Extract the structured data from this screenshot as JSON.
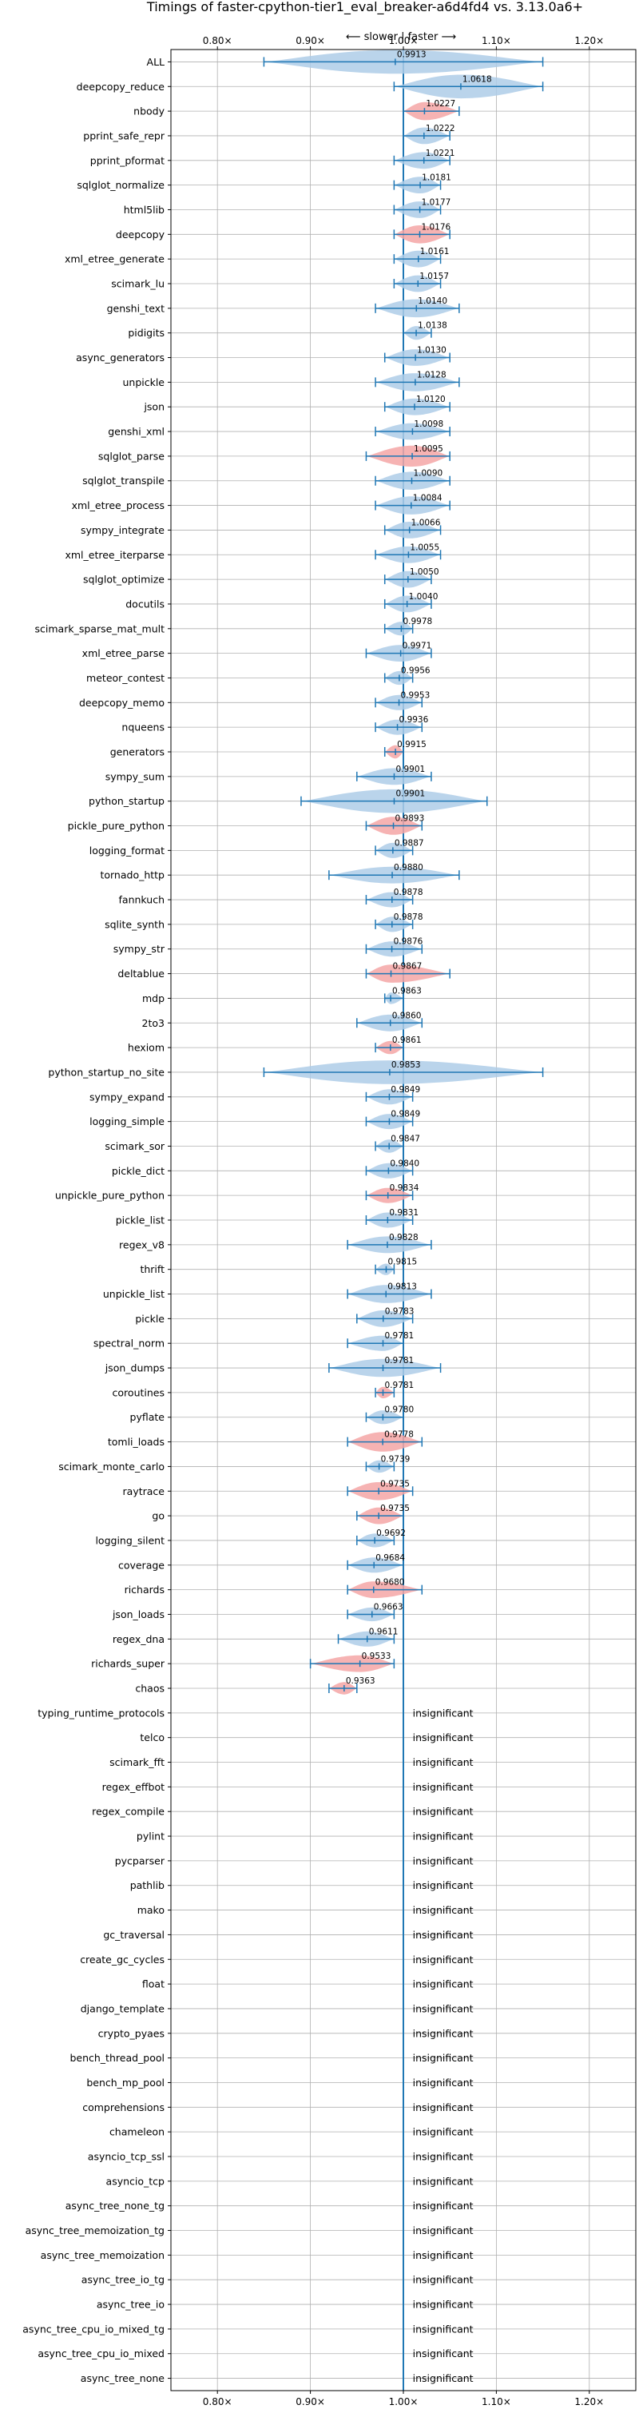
{
  "chart_data": {
    "type": "violin",
    "title": "Timings of faster-cpython-tier1_eval_breaker-a6d4fd4 vs. 3.13.0a6+",
    "direction_label": "⟵ slower | faster ⟶",
    "xlim": [
      0.75,
      1.25
    ],
    "x_ticks": [
      0.8,
      0.9,
      1.0,
      1.1,
      1.2
    ],
    "x_tick_labels": [
      "0.80×",
      "0.90×",
      "1.00×",
      "1.10×",
      "1.20×"
    ],
    "reference_line": 1.0,
    "grid": true,
    "colors": {
      "normal": "#aecde8",
      "highlight": "#f4a6a6",
      "line": "#1f77b4",
      "grid": "#b0b0b0"
    },
    "insignificant_label": "insignificant",
    "benchmarks": [
      {
        "name": "ALL",
        "value": 0.9913,
        "label": "0.9913",
        "lo": 0.85,
        "hi": 1.15,
        "width": 0.07,
        "highlight": false
      },
      {
        "name": "deepcopy_reduce",
        "value": 1.0618,
        "label": "1.0618",
        "lo": 0.99,
        "hi": 1.15,
        "width": 0.07,
        "highlight": false
      },
      {
        "name": "nbody",
        "value": 1.0227,
        "label": "1.0227",
        "lo": 1.0,
        "hi": 1.06,
        "width": 0.035,
        "highlight": true
      },
      {
        "name": "pprint_safe_repr",
        "value": 1.0222,
        "label": "1.0222",
        "lo": 1.0,
        "hi": 1.05,
        "width": 0.03,
        "highlight": false
      },
      {
        "name": "pprint_pformat",
        "value": 1.0221,
        "label": "1.0221",
        "lo": 0.99,
        "hi": 1.05,
        "width": 0.03,
        "highlight": false
      },
      {
        "name": "sqlglot_normalize",
        "value": 1.0181,
        "label": "1.0181",
        "lo": 0.99,
        "hi": 1.04,
        "width": 0.03,
        "highlight": false
      },
      {
        "name": "html5lib",
        "value": 1.0177,
        "label": "1.0177",
        "lo": 0.99,
        "hi": 1.04,
        "width": 0.03,
        "highlight": false
      },
      {
        "name": "deepcopy",
        "value": 1.0176,
        "label": "1.0176",
        "lo": 0.99,
        "hi": 1.05,
        "width": 0.035,
        "highlight": true
      },
      {
        "name": "xml_etree_generate",
        "value": 1.0161,
        "label": "1.0161",
        "lo": 0.99,
        "hi": 1.04,
        "width": 0.03,
        "highlight": false
      },
      {
        "name": "scimark_lu",
        "value": 1.0157,
        "label": "1.0157",
        "lo": 0.99,
        "hi": 1.04,
        "width": 0.03,
        "highlight": false
      },
      {
        "name": "genshi_text",
        "value": 1.014,
        "label": "1.0140",
        "lo": 0.97,
        "hi": 1.06,
        "width": 0.035,
        "highlight": false
      },
      {
        "name": "pidigits",
        "value": 1.0138,
        "label": "1.0138",
        "lo": 1.0,
        "hi": 1.03,
        "width": 0.02,
        "highlight": false
      },
      {
        "name": "async_generators",
        "value": 1.013,
        "label": "1.0130",
        "lo": 0.98,
        "hi": 1.05,
        "width": 0.03,
        "highlight": false
      },
      {
        "name": "unpickle",
        "value": 1.0128,
        "label": "1.0128",
        "lo": 0.97,
        "hi": 1.06,
        "width": 0.035,
        "highlight": false
      },
      {
        "name": "json",
        "value": 1.012,
        "label": "1.0120",
        "lo": 0.98,
        "hi": 1.05,
        "width": 0.03,
        "highlight": false
      },
      {
        "name": "genshi_xml",
        "value": 1.0098,
        "label": "1.0098",
        "lo": 0.97,
        "hi": 1.05,
        "width": 0.03,
        "highlight": false
      },
      {
        "name": "sqlglot_parse",
        "value": 1.0095,
        "label": "1.0095",
        "lo": 0.96,
        "hi": 1.05,
        "width": 0.045,
        "highlight": true
      },
      {
        "name": "sqlglot_transpile",
        "value": 1.009,
        "label": "1.0090",
        "lo": 0.97,
        "hi": 1.05,
        "width": 0.035,
        "highlight": false
      },
      {
        "name": "xml_etree_process",
        "value": 1.0084,
        "label": "1.0084",
        "lo": 0.97,
        "hi": 1.05,
        "width": 0.035,
        "highlight": false
      },
      {
        "name": "sympy_integrate",
        "value": 1.0066,
        "label": "1.0066",
        "lo": 0.98,
        "hi": 1.04,
        "width": 0.03,
        "highlight": false
      },
      {
        "name": "xml_etree_iterparse",
        "value": 1.0055,
        "label": "1.0055",
        "lo": 0.97,
        "hi": 1.04,
        "width": 0.03,
        "highlight": false
      },
      {
        "name": "sqlglot_optimize",
        "value": 1.005,
        "label": "1.0050",
        "lo": 0.98,
        "hi": 1.03,
        "width": 0.03,
        "highlight": false
      },
      {
        "name": "docutils",
        "value": 1.004,
        "label": "1.0040",
        "lo": 0.98,
        "hi": 1.03,
        "width": 0.03,
        "highlight": false
      },
      {
        "name": "scimark_sparse_mat_mult",
        "value": 0.9978,
        "label": "0.9978",
        "lo": 0.98,
        "hi": 1.01,
        "width": 0.02,
        "highlight": false
      },
      {
        "name": "xml_etree_parse",
        "value": 0.9971,
        "label": "0.9971",
        "lo": 0.96,
        "hi": 1.03,
        "width": 0.03,
        "highlight": false
      },
      {
        "name": "meteor_contest",
        "value": 0.9956,
        "label": "0.9956",
        "lo": 0.98,
        "hi": 1.01,
        "width": 0.02,
        "highlight": false
      },
      {
        "name": "deepcopy_memo",
        "value": 0.9953,
        "label": "0.9953",
        "lo": 0.97,
        "hi": 1.02,
        "width": 0.025,
        "highlight": false
      },
      {
        "name": "nqueens",
        "value": 0.9936,
        "label": "0.9936",
        "lo": 0.97,
        "hi": 1.02,
        "width": 0.025,
        "highlight": false
      },
      {
        "name": "generators",
        "value": 0.9915,
        "label": "0.9915",
        "lo": 0.98,
        "hi": 1.0,
        "width": 0.018,
        "highlight": true
      },
      {
        "name": "sympy_sum",
        "value": 0.9901,
        "label": "0.9901",
        "lo": 0.95,
        "hi": 1.03,
        "width": 0.03,
        "highlight": false
      },
      {
        "name": "python_startup",
        "value": 0.9901,
        "label": "0.9901",
        "lo": 0.89,
        "hi": 1.09,
        "width": 0.08,
        "highlight": false
      },
      {
        "name": "pickle_pure_python",
        "value": 0.9893,
        "label": "0.9893",
        "lo": 0.96,
        "hi": 1.02,
        "width": 0.035,
        "highlight": true
      },
      {
        "name": "logging_format",
        "value": 0.9887,
        "label": "0.9887",
        "lo": 0.97,
        "hi": 1.01,
        "width": 0.025,
        "highlight": false
      },
      {
        "name": "tornado_http",
        "value": 0.988,
        "label": "0.9880",
        "lo": 0.92,
        "hi": 1.06,
        "width": 0.03,
        "highlight": false
      },
      {
        "name": "fannkuch",
        "value": 0.9878,
        "label": "0.9878",
        "lo": 0.96,
        "hi": 1.01,
        "width": 0.025,
        "highlight": false
      },
      {
        "name": "sqlite_synth",
        "value": 0.9878,
        "label": "0.9878",
        "lo": 0.97,
        "hi": 1.01,
        "width": 0.025,
        "highlight": false
      },
      {
        "name": "sympy_str",
        "value": 0.9876,
        "label": "0.9876",
        "lo": 0.96,
        "hi": 1.02,
        "width": 0.025,
        "highlight": false
      },
      {
        "name": "deltablue",
        "value": 0.9867,
        "label": "0.9867",
        "lo": 0.96,
        "hi": 1.05,
        "width": 0.035,
        "highlight": true
      },
      {
        "name": "mdp",
        "value": 0.9863,
        "label": "0.9863",
        "lo": 0.98,
        "hi": 1.0,
        "width": 0.012,
        "highlight": false
      },
      {
        "name": "2to3",
        "value": 0.986,
        "label": "0.9860",
        "lo": 0.95,
        "hi": 1.02,
        "width": 0.03,
        "highlight": false
      },
      {
        "name": "hexiom",
        "value": 0.9861,
        "label": "0.9861",
        "lo": 0.97,
        "hi": 1.0,
        "width": 0.018,
        "highlight": true
      },
      {
        "name": "python_startup_no_site",
        "value": 0.9853,
        "label": "0.9853",
        "lo": 0.85,
        "hi": 1.15,
        "width": 0.09,
        "highlight": false
      },
      {
        "name": "sympy_expand",
        "value": 0.9849,
        "label": "0.9849",
        "lo": 0.96,
        "hi": 1.01,
        "width": 0.025,
        "highlight": false
      },
      {
        "name": "logging_simple",
        "value": 0.9849,
        "label": "0.9849",
        "lo": 0.96,
        "hi": 1.01,
        "width": 0.025,
        "highlight": false
      },
      {
        "name": "scimark_sor",
        "value": 0.9847,
        "label": "0.9847",
        "lo": 0.97,
        "hi": 1.0,
        "width": 0.018,
        "highlight": false
      },
      {
        "name": "pickle_dict",
        "value": 0.984,
        "label": "0.9840",
        "lo": 0.96,
        "hi": 1.01,
        "width": 0.025,
        "highlight": false
      },
      {
        "name": "unpickle_pure_python",
        "value": 0.9834,
        "label": "0.9834",
        "lo": 0.96,
        "hi": 1.01,
        "width": 0.025,
        "highlight": true
      },
      {
        "name": "pickle_list",
        "value": 0.9831,
        "label": "0.9831",
        "lo": 0.96,
        "hi": 1.01,
        "width": 0.025,
        "highlight": false
      },
      {
        "name": "regex_v8",
        "value": 0.9828,
        "label": "0.9828",
        "lo": 0.94,
        "hi": 1.03,
        "width": 0.03,
        "highlight": false
      },
      {
        "name": "thrift",
        "value": 0.9815,
        "label": "0.9815",
        "lo": 0.97,
        "hi": 0.99,
        "width": 0.012,
        "highlight": false
      },
      {
        "name": "unpickle_list",
        "value": 0.9813,
        "label": "0.9813",
        "lo": 0.94,
        "hi": 1.03,
        "width": 0.035,
        "highlight": false
      },
      {
        "name": "pickle",
        "value": 0.9783,
        "label": "0.9783",
        "lo": 0.95,
        "hi": 1.01,
        "width": 0.03,
        "highlight": false
      },
      {
        "name": "spectral_norm",
        "value": 0.9781,
        "label": "0.9781",
        "lo": 0.94,
        "hi": 1.0,
        "width": 0.025,
        "highlight": false
      },
      {
        "name": "json_dumps",
        "value": 0.9781,
        "label": "0.9781",
        "lo": 0.92,
        "hi": 1.04,
        "width": 0.035,
        "highlight": false
      },
      {
        "name": "coroutines",
        "value": 0.9781,
        "label": "0.9781",
        "lo": 0.97,
        "hi": 0.99,
        "width": 0.012,
        "highlight": true
      },
      {
        "name": "pyflate",
        "value": 0.978,
        "label": "0.9780",
        "lo": 0.96,
        "hi": 1.0,
        "width": 0.02,
        "highlight": false
      },
      {
        "name": "tomli_loads",
        "value": 0.9778,
        "label": "0.9778",
        "lo": 0.94,
        "hi": 1.02,
        "width": 0.04,
        "highlight": true
      },
      {
        "name": "scimark_monte_carlo",
        "value": 0.9739,
        "label": "0.9739",
        "lo": 0.96,
        "hi": 0.99,
        "width": 0.015,
        "highlight": false
      },
      {
        "name": "raytrace",
        "value": 0.9735,
        "label": "0.9735",
        "lo": 0.94,
        "hi": 1.01,
        "width": 0.035,
        "highlight": true
      },
      {
        "name": "go",
        "value": 0.9735,
        "label": "0.9735",
        "lo": 0.95,
        "hi": 1.0,
        "width": 0.03,
        "highlight": true
      },
      {
        "name": "logging_silent",
        "value": 0.9692,
        "label": "0.9692",
        "lo": 0.95,
        "hi": 0.99,
        "width": 0.02,
        "highlight": false
      },
      {
        "name": "coverage",
        "value": 0.9684,
        "label": "0.9684",
        "lo": 0.94,
        "hi": 1.0,
        "width": 0.025,
        "highlight": false
      },
      {
        "name": "richards",
        "value": 0.968,
        "label": "0.9680",
        "lo": 0.94,
        "hi": 1.02,
        "width": 0.03,
        "highlight": true
      },
      {
        "name": "json_loads",
        "value": 0.9663,
        "label": "0.9663",
        "lo": 0.94,
        "hi": 0.99,
        "width": 0.02,
        "highlight": false
      },
      {
        "name": "regex_dna",
        "value": 0.9611,
        "label": "0.9611",
        "lo": 0.93,
        "hi": 0.99,
        "width": 0.025,
        "highlight": false
      },
      {
        "name": "richards_super",
        "value": 0.9533,
        "label": "0.9533",
        "lo": 0.9,
        "hi": 0.99,
        "width": 0.03,
        "highlight": true
      },
      {
        "name": "chaos",
        "value": 0.9363,
        "label": "0.9363",
        "lo": 0.92,
        "hi": 0.95,
        "width": 0.015,
        "highlight": true
      },
      {
        "name": "typing_runtime_protocols",
        "insignificant": true
      },
      {
        "name": "telco",
        "insignificant": true
      },
      {
        "name": "scimark_fft",
        "insignificant": true
      },
      {
        "name": "regex_effbot",
        "insignificant": true
      },
      {
        "name": "regex_compile",
        "insignificant": true
      },
      {
        "name": "pylint",
        "insignificant": true
      },
      {
        "name": "pycparser",
        "insignificant": true
      },
      {
        "name": "pathlib",
        "insignificant": true
      },
      {
        "name": "mako",
        "insignificant": true
      },
      {
        "name": "gc_traversal",
        "insignificant": true
      },
      {
        "name": "create_gc_cycles",
        "insignificant": true
      },
      {
        "name": "float",
        "insignificant": true
      },
      {
        "name": "django_template",
        "insignificant": true
      },
      {
        "name": "crypto_pyaes",
        "insignificant": true
      },
      {
        "name": "bench_thread_pool",
        "insignificant": true
      },
      {
        "name": "bench_mp_pool",
        "insignificant": true
      },
      {
        "name": "comprehensions",
        "insignificant": true
      },
      {
        "name": "chameleon",
        "insignificant": true
      },
      {
        "name": "asyncio_tcp_ssl",
        "insignificant": true
      },
      {
        "name": "asyncio_tcp",
        "insignificant": true
      },
      {
        "name": "async_tree_none_tg",
        "insignificant": true
      },
      {
        "name": "async_tree_memoization_tg",
        "insignificant": true
      },
      {
        "name": "async_tree_memoization",
        "insignificant": true
      },
      {
        "name": "async_tree_io_tg",
        "insignificant": true
      },
      {
        "name": "async_tree_io",
        "insignificant": true
      },
      {
        "name": "async_tree_cpu_io_mixed_tg",
        "insignificant": true
      },
      {
        "name": "async_tree_cpu_io_mixed",
        "insignificant": true
      },
      {
        "name": "async_tree_none",
        "insignificant": true
      }
    ]
  }
}
